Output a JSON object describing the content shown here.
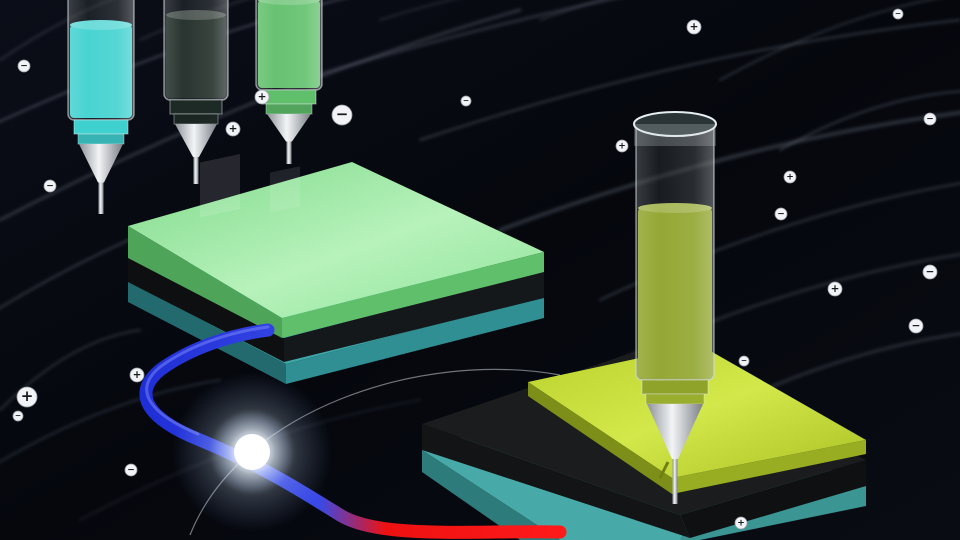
{
  "scene": {
    "background_color": "#05070d",
    "streak_color": "#9aa4b4",
    "wire_negative_color": "#1f2fd6",
    "wire_positive_color": "#ee1111",
    "glow_color": "#ffffff"
  },
  "syringes": [
    {
      "name": "cyan-ink-syringe",
      "ink_color": "#3fd1cf"
    },
    {
      "name": "black-ink-syringe",
      "ink_color": "#1e2a25"
    },
    {
      "name": "green-ink-syringe",
      "ink_color": "#5fbf6a"
    },
    {
      "name": "yellow-green-ink-syringe",
      "ink_color": "#8fa32a"
    }
  ],
  "devices": [
    {
      "name": "left-device",
      "top_layer_color": "#9fe8a6",
      "middle_layer_color": "#1c1f21",
      "bottom_layer_color": "#3fa8aa"
    },
    {
      "name": "right-device",
      "top_layer_color": "#c6dc3c",
      "middle_layer_color": "#1a1c1d",
      "bottom_layer_color": "#48aaa8"
    }
  ],
  "charges": [
    {
      "symbol": "+"
    },
    {
      "symbol": "−"
    },
    {
      "symbol": "+"
    },
    {
      "symbol": "−"
    },
    {
      "symbol": "−"
    },
    {
      "symbol": "+"
    },
    {
      "symbol": "−"
    },
    {
      "symbol": "−"
    },
    {
      "symbol": "+"
    },
    {
      "symbol": "+"
    },
    {
      "symbol": "−"
    },
    {
      "symbol": "−"
    },
    {
      "symbol": "+"
    },
    {
      "symbol": "−"
    },
    {
      "symbol": "+"
    },
    {
      "symbol": "+"
    },
    {
      "symbol": "−"
    },
    {
      "symbol": "−"
    },
    {
      "symbol": "−"
    },
    {
      "symbol": "+"
    },
    {
      "symbol": "−"
    }
  ]
}
